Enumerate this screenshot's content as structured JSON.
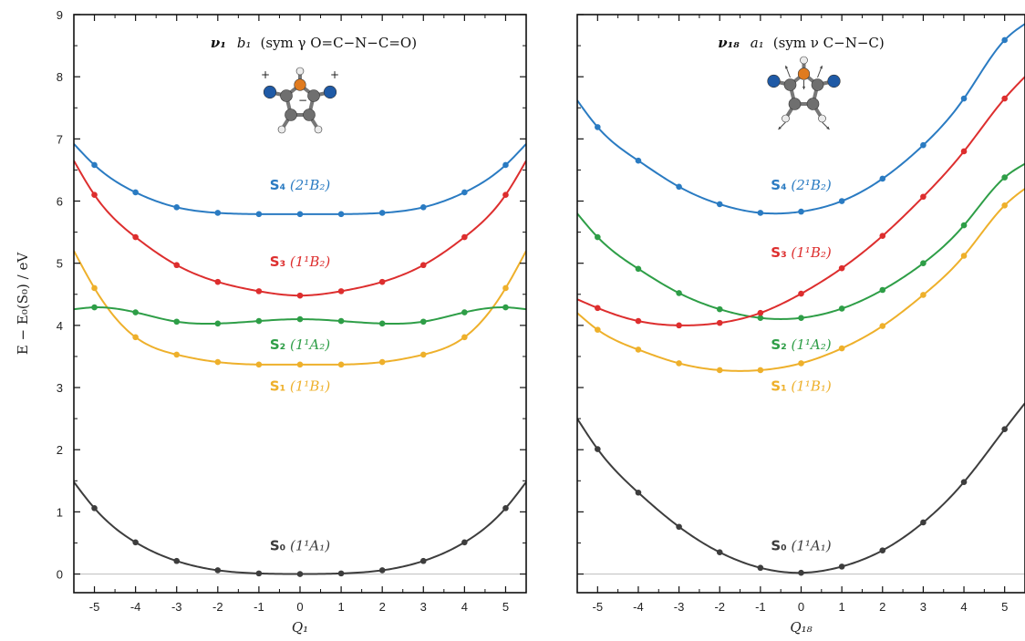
{
  "chart_data": [
    {
      "type": "line",
      "title_mode": "ν₁",
      "title_sym": "b₁",
      "title_desc": "(sym γ O=C−N−C=O)",
      "xlabel": "Q₁",
      "ylabel": "E − E₀(S₀) / eV",
      "xlim": [
        -5.5,
        5.5
      ],
      "ylim": [
        -0.3,
        9
      ],
      "xticks": [
        -5,
        -4,
        -3,
        -2,
        -1,
        0,
        1,
        2,
        3,
        4,
        5
      ],
      "yticks": [
        0,
        1,
        2,
        3,
        4,
        5,
        6,
        7,
        8,
        9
      ],
      "x": [
        -5,
        -4,
        -3,
        -2,
        -1,
        0,
        1,
        2,
        3,
        4,
        5
      ],
      "series": [
        {
          "name": "S₀",
          "state": "(1¹A₁)",
          "color": "#3d3d3d",
          "values": [
            1.06,
            0.51,
            0.21,
            0.06,
            0.01,
            0.0,
            0.01,
            0.06,
            0.21,
            0.51,
            1.06
          ],
          "curve_ends": [
            1.48,
            1.48
          ],
          "label_at": [
            0,
            0.38
          ]
        },
        {
          "name": "S₁",
          "state": "(1¹B₁)",
          "color": "#eeb02b",
          "values": [
            4.6,
            3.81,
            3.53,
            3.41,
            3.37,
            3.37,
            3.37,
            3.41,
            3.53,
            3.81,
            4.6
          ],
          "curve_ends": [
            5.2,
            5.2
          ],
          "label_at": [
            0,
            2.95
          ]
        },
        {
          "name": "S₂",
          "state": "(1¹A₂)",
          "color": "#2e9e47",
          "values": [
            4.29,
            4.21,
            4.06,
            4.03,
            4.07,
            4.1,
            4.07,
            4.03,
            4.06,
            4.21,
            4.29
          ],
          "curve_ends": [
            4.26,
            4.26
          ],
          "label_at": [
            0,
            3.62
          ]
        },
        {
          "name": "S₃",
          "state": "(1¹B₂)",
          "color": "#dd2e2e",
          "values": [
            6.1,
            5.42,
            4.97,
            4.7,
            4.55,
            4.48,
            4.55,
            4.7,
            4.97,
            5.42,
            6.1
          ],
          "curve_ends": [
            6.65,
            6.65
          ],
          "label_at": [
            0,
            4.95
          ]
        },
        {
          "name": "S₄",
          "state": "(2¹B₂)",
          "color": "#2a7bc2",
          "values": [
            6.58,
            6.14,
            5.9,
            5.81,
            5.79,
            5.79,
            5.79,
            5.81,
            5.9,
            6.14,
            6.58
          ],
          "curve_ends": [
            6.92,
            6.92
          ],
          "label_at": [
            0,
            6.18
          ]
        }
      ],
      "molecule": "2,5-pyrroledione (ν₁ mode)",
      "molecule_marks": [
        "+",
        "−",
        "+"
      ]
    },
    {
      "type": "line",
      "title_mode": "ν₁₈",
      "title_sym": "a₁",
      "title_desc": "(sym ν C−N−C)",
      "xlabel": "Q₁₈",
      "ylabel": "",
      "xlim": [
        -5.5,
        5.5
      ],
      "ylim": [
        -0.3,
        9
      ],
      "xticks": [
        -5,
        -4,
        -3,
        -2,
        -1,
        0,
        1,
        2,
        3,
        4,
        5
      ],
      "yticks": [
        0,
        1,
        2,
        3,
        4,
        5,
        6,
        7,
        8,
        9
      ],
      "x": [
        -5,
        -4,
        -3,
        -2,
        -1,
        0,
        1,
        2,
        3,
        4,
        5
      ],
      "series": [
        {
          "name": "S₀",
          "state": "(1¹A₁)",
          "color": "#3d3d3d",
          "values": [
            2.01,
            1.31,
            0.76,
            0.35,
            0.1,
            0.02,
            0.12,
            0.38,
            0.83,
            1.48,
            2.33
          ],
          "curve_ends": [
            2.5,
            2.75
          ],
          "label_at": [
            0,
            0.38
          ]
        },
        {
          "name": "S₁",
          "state": "(1¹B₁)",
          "color": "#eeb02b",
          "values": [
            3.93,
            3.61,
            3.39,
            3.28,
            3.28,
            3.39,
            3.63,
            3.99,
            4.49,
            5.12,
            5.93
          ],
          "curve_ends": [
            4.2,
            6.2
          ],
          "label_at": [
            0,
            2.95
          ]
        },
        {
          "name": "S₂",
          "state": "(1¹A₂)",
          "color": "#2e9e47",
          "values": [
            5.42,
            4.91,
            4.52,
            4.26,
            4.12,
            4.12,
            4.27,
            4.57,
            5.0,
            5.61,
            6.38
          ],
          "curve_ends": [
            5.8,
            6.6
          ],
          "label_at": [
            0,
            3.62
          ]
        },
        {
          "name": "S₃",
          "state": "(1¹B₂)",
          "color": "#dd2e2e",
          "values": [
            4.28,
            4.07,
            4.0,
            4.04,
            4.2,
            4.51,
            4.92,
            5.44,
            6.07,
            6.8,
            7.65
          ],
          "curve_ends": [
            4.42,
            8.0
          ],
          "label_at": [
            0,
            5.1
          ]
        },
        {
          "name": "S₄",
          "state": "(2¹B₂)",
          "color": "#2a7bc2",
          "values": [
            7.19,
            6.65,
            6.23,
            5.95,
            5.81,
            5.83,
            6.0,
            6.36,
            6.9,
            7.65,
            8.59
          ],
          "curve_ends": [
            7.62,
            8.85
          ],
          "label_at": [
            0,
            6.18
          ]
        }
      ],
      "molecule": "2,5-pyrroledione (ν₁₈ mode)",
      "molecule_marks": []
    }
  ]
}
